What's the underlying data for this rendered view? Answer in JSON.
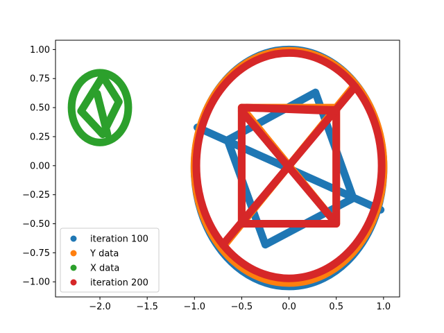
{
  "chart_data": {
    "type": "scatter",
    "title": "",
    "xlabel": "",
    "ylabel": "",
    "xlim": [
      -2.47,
      1.17
    ],
    "ylim": [
      -1.13,
      1.08
    ],
    "xticks": [
      -2.0,
      -1.5,
      -1.0,
      -0.5,
      0.0,
      0.5,
      1.0
    ],
    "xtick_labels": [
      "−2.0",
      "−1.5",
      "−1.0",
      "−0.5",
      "0.0",
      "0.5",
      "1.0"
    ],
    "yticks": [
      -1.0,
      -0.75,
      -0.5,
      -0.25,
      0.0,
      0.25,
      0.5,
      0.75,
      1.0
    ],
    "ytick_labels": [
      "−1.00",
      "−0.75",
      "−0.50",
      "−0.25",
      "0.00",
      "0.25",
      "0.50",
      "0.75",
      "1.00"
    ],
    "grid": false,
    "legend_position": "lower-left",
    "series": [
      {
        "name": "iteration 100",
        "color": "#1f77b4",
        "shapes": [
          {
            "kind": "ellipse",
            "cx": 0.0,
            "cy": -0.02,
            "rx": 1.0,
            "ry": 1.02
          },
          {
            "kind": "polyline",
            "points": [
              [
                0.28,
                0.63
              ],
              [
                -0.65,
                0.22
              ],
              [
                -0.25,
                -0.68
              ],
              [
                0.68,
                -0.28
              ],
              [
                0.28,
                0.63
              ]
            ]
          },
          {
            "kind": "polyline",
            "points": [
              [
                -0.97,
                0.33
              ],
              [
                0.97,
                -0.38
              ]
            ]
          }
        ]
      },
      {
        "name": "Y data",
        "color": "#ff7f0e",
        "shapes": [
          {
            "kind": "ellipse",
            "cx": 0.0,
            "cy": -0.01,
            "rx": 1.0,
            "ry": 1.0
          },
          {
            "kind": "polyline",
            "points": [
              [
                -0.5,
                0.5
              ],
              [
                0.5,
                0.5
              ],
              [
                0.5,
                -0.5
              ],
              [
                -0.5,
                -0.5
              ],
              [
                -0.5,
                0.5
              ]
            ]
          },
          {
            "kind": "polyline",
            "points": [
              [
                -0.7,
                -0.7
              ],
              [
                0.7,
                0.7
              ]
            ]
          },
          {
            "kind": "polyline",
            "points": [
              [
                -0.5,
                0.5
              ],
              [
                0.45,
                -0.45
              ]
            ]
          }
        ]
      },
      {
        "name": "X data",
        "color": "#2ca02c",
        "shapes": [
          {
            "kind": "ellipse",
            "cx": -2.0,
            "cy": 0.5,
            "rx": 0.3,
            "ry": 0.3
          },
          {
            "kind": "polyline",
            "points": [
              [
                -1.97,
                0.77
              ],
              [
                -1.8,
                0.55
              ],
              [
                -1.97,
                0.27
              ],
              [
                -2.2,
                0.47
              ],
              [
                -1.97,
                0.77
              ]
            ]
          },
          {
            "kind": "polyline",
            "points": [
              [
                -2.03,
                0.62
              ],
              [
                -1.92,
                0.27
              ]
            ]
          }
        ]
      },
      {
        "name": "iteration 200",
        "color": "#d62728",
        "shapes": [
          {
            "kind": "ellipse",
            "cx": 0.0,
            "cy": 0.0,
            "rx": 0.98,
            "ry": 0.97
          },
          {
            "kind": "polyline",
            "points": [
              [
                -0.5,
                0.5
              ],
              [
                0.5,
                0.48
              ],
              [
                0.5,
                -0.5
              ],
              [
                -0.5,
                -0.5
              ],
              [
                -0.5,
                0.5
              ]
            ]
          },
          {
            "kind": "polyline",
            "points": [
              [
                -0.7,
                -0.68
              ],
              [
                0.7,
                0.68
              ]
            ]
          },
          {
            "kind": "polyline",
            "points": [
              [
                -0.45,
                0.5
              ],
              [
                0.5,
                0.47
              ]
            ]
          },
          {
            "kind": "polyline",
            "points": [
              [
                -0.5,
                0.47
              ],
              [
                0.45,
                -0.45
              ]
            ]
          }
        ]
      }
    ]
  }
}
